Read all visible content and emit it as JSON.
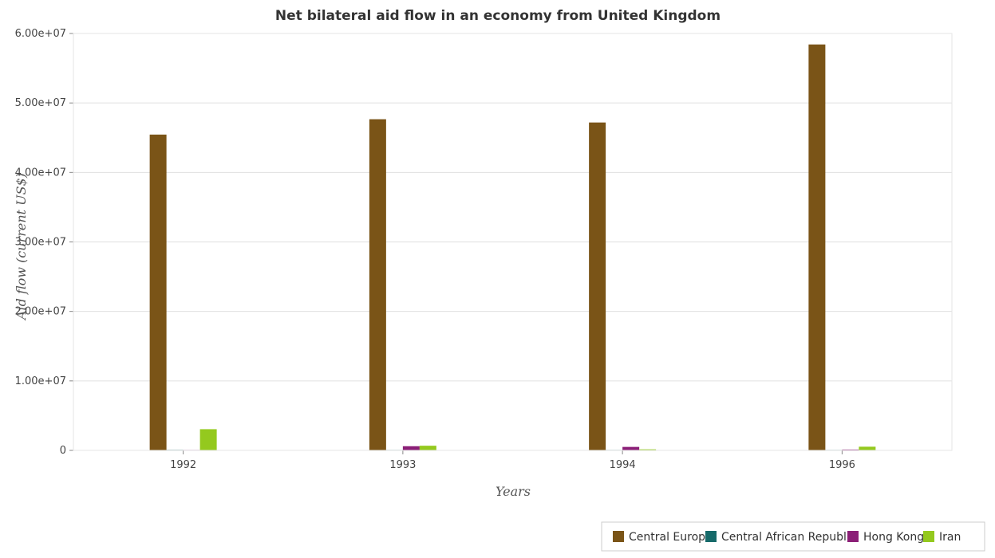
{
  "chart_data": {
    "type": "bar",
    "title": "Net bilateral aid flow in an economy from United Kingdom",
    "xlabel": "Years",
    "ylabel": "Aid flow (current US$)",
    "categories": [
      "1992",
      "1993",
      "1994",
      "1996"
    ],
    "ylim": [
      0,
      60000000
    ],
    "yticks": [
      0,
      10000000,
      20000000,
      30000000,
      40000000,
      50000000,
      60000000
    ],
    "ytick_labels": [
      "0",
      "1.00e+07",
      "2.00e+07",
      "3.00e+07",
      "4.00e+07",
      "5.00e+07",
      "6.00e+07"
    ],
    "grid": true,
    "legend_position": "bottom-right",
    "series": [
      {
        "name": "Central Europe",
        "color": "#7a5417",
        "values": [
          45450000,
          47660000,
          47190000,
          58420000
        ]
      },
      {
        "name": "Central African Republic",
        "color": "#166a6a",
        "values": [
          80000,
          30000,
          30000,
          60000
        ]
      },
      {
        "name": "Hong Kong",
        "color": "#8b1f77",
        "values": [
          40000,
          600000,
          500000,
          120000
        ]
      },
      {
        "name": "Iran",
        "color": "#94c91e",
        "values": [
          3050000,
          670000,
          150000,
          530000
        ]
      }
    ]
  }
}
